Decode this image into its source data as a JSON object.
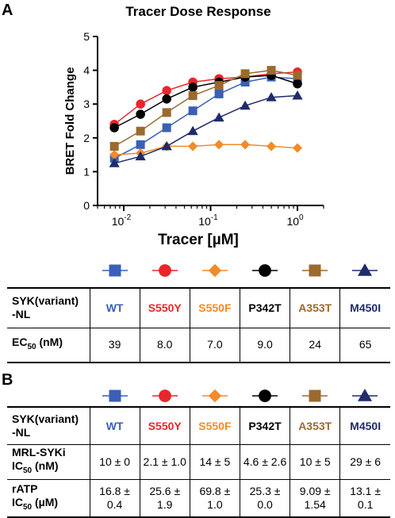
{
  "panelA": {
    "letter": "A"
  },
  "panelB": {
    "letter": "B"
  },
  "chart_data": {
    "type": "scatter",
    "title": "Tracer Dose Response",
    "xlabel": "Tracer [µM]",
    "ylabel": "BRET Fold Change",
    "xscale": "log",
    "xlim": [
      0.005,
      2
    ],
    "ylim": [
      0,
      5
    ],
    "yticks": [
      0,
      1,
      2,
      3,
      4,
      5
    ],
    "xticks": [
      0.01,
      0.1,
      1
    ],
    "xtick_labels": [
      {
        "base": "10",
        "exp": "-2"
      },
      {
        "base": "10",
        "exp": "-1"
      },
      {
        "base": "10",
        "exp": "0"
      }
    ],
    "x": [
      0.0078,
      0.0156,
      0.03125,
      0.0625,
      0.125,
      0.25,
      0.5,
      1.0
    ],
    "series": [
      {
        "name": "WT",
        "marker": "square",
        "color": "#3a5fb6",
        "values": [
          1.4,
          1.8,
          2.3,
          2.8,
          3.3,
          3.65,
          3.8,
          3.75
        ]
      },
      {
        "name": "S550Y",
        "marker": "circle",
        "color": "#e8262b",
        "values": [
          2.4,
          3.0,
          3.4,
          3.65,
          3.75,
          3.8,
          3.9,
          3.95
        ]
      },
      {
        "name": "S550F",
        "marker": "diamond",
        "color": "#f28b2a",
        "values": [
          1.5,
          1.55,
          1.75,
          1.75,
          1.8,
          1.8,
          1.75,
          1.7
        ]
      },
      {
        "name": "P342T",
        "marker": "circle",
        "color": "#000000",
        "values": [
          2.3,
          2.7,
          3.15,
          3.5,
          3.65,
          3.8,
          3.85,
          3.6
        ]
      },
      {
        "name": "A353T",
        "marker": "square",
        "color": "#9a6a2e",
        "values": [
          1.75,
          2.2,
          2.75,
          3.25,
          3.55,
          3.9,
          4.0,
          3.85
        ]
      },
      {
        "name": "M450I",
        "marker": "triangle",
        "color": "#1f2b6b",
        "values": [
          1.25,
          1.45,
          1.75,
          2.2,
          2.6,
          2.95,
          3.2,
          3.25
        ]
      }
    ]
  },
  "tableA": {
    "row1_label": "SYK(variant)\n-NL",
    "row2_label_main": "EC",
    "row2_label_sub": "50",
    "row2_label_unit": " (nM)",
    "variants": [
      {
        "name": "WT",
        "color": "#3a5fb6",
        "marker": "square",
        "ec50": "39"
      },
      {
        "name": "S550Y",
        "color": "#e8262b",
        "marker": "circle",
        "ec50": "8.0"
      },
      {
        "name": "S550F",
        "color": "#f28b2a",
        "marker": "diamond",
        "ec50": "7.0"
      },
      {
        "name": "P342T",
        "color": "#000000",
        "marker": "circle",
        "ec50": "9.0"
      },
      {
        "name": "A353T",
        "color": "#9a6a2e",
        "marker": "square",
        "ec50": "24"
      },
      {
        "name": "M450I",
        "color": "#1f2b6b",
        "marker": "triangle",
        "ec50": "65"
      }
    ]
  },
  "tableB": {
    "row1_label": "SYK(variant)\n-NL",
    "row2_label_line1": "MRL-SYKi",
    "row2_label_main": "IC",
    "row2_label_sub": "50",
    "row2_label_unit": " (nM)",
    "row3_label_line1": "rATP",
    "row3_label_main": "IC",
    "row3_label_sub": "50",
    "row3_label_unit": " (µM)",
    "variants": [
      {
        "name": "WT",
        "color": "#3a5fb6",
        "marker": "square",
        "mrl": "10 ± 0",
        "ratp": "16.8 ±\n0.4"
      },
      {
        "name": "S550Y",
        "color": "#e8262b",
        "marker": "circle",
        "mrl": "2.1 ± 1.0",
        "ratp": "25.6 ±\n1.9"
      },
      {
        "name": "S550F",
        "color": "#f28b2a",
        "marker": "diamond",
        "mrl": "14 ± 5",
        "ratp": "69.8 ±\n1.0"
      },
      {
        "name": "P342T",
        "color": "#000000",
        "marker": "circle",
        "mrl": "4.6 ± 2.6",
        "ratp": "25.3 ±\n0.0"
      },
      {
        "name": "A353T",
        "color": "#9a6a2e",
        "marker": "square",
        "mrl": "10 ± 5",
        "ratp": "9.09 ±\n1.54"
      },
      {
        "name": "M450I",
        "color": "#1f2b6b",
        "marker": "triangle",
        "mrl": "29 ± 6",
        "ratp": "13.1 ±\n0.1"
      }
    ]
  }
}
